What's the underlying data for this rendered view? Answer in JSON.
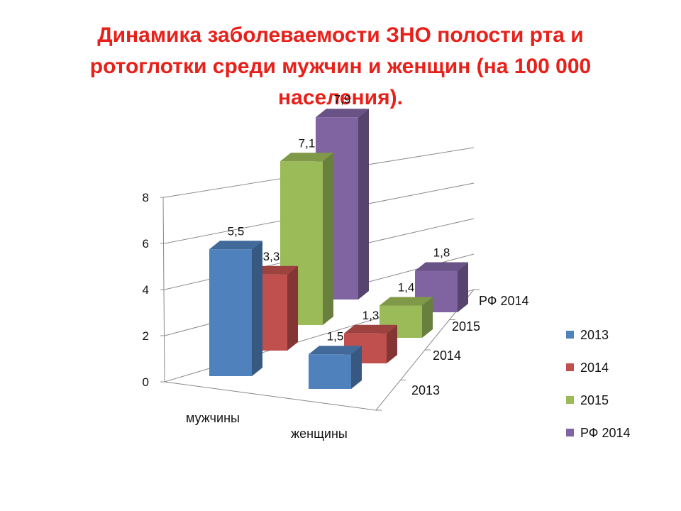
{
  "title_lines": [
    "Динамика заболеваемости ЗНО полости рта и",
    "ротоглотки среди мужчин и женщин (на 100 000",
    "населения)."
  ],
  "chart_data": {
    "type": "bar",
    "subtype": "3d-column",
    "title": "Динамика заболеваемости ЗНО полости рта и ротоглотки среди мужчин и женщин (на 100 000 населения).",
    "categories": [
      "мужчины",
      "женщины"
    ],
    "series": [
      {
        "name": "2013",
        "values": [
          5.5,
          1.5
        ],
        "labels": [
          "5,5",
          "1,5"
        ],
        "color": "#4f81bd"
      },
      {
        "name": "2014",
        "values": [
          3.3,
          1.3
        ],
        "labels": [
          "3,3",
          "1,3"
        ],
        "color": "#c0504d"
      },
      {
        "name": "2015",
        "values": [
          7.1,
          1.4
        ],
        "labels": [
          "7,1",
          "1,4"
        ],
        "color": "#9bbb59"
      },
      {
        "name": "РФ 2014",
        "values": [
          7.9,
          1.8
        ],
        "labels": [
          "7,9",
          "1,8"
        ],
        "color": "#8064a2"
      }
    ],
    "y_ticks": [
      "0",
      "2",
      "4",
      "6",
      "8"
    ],
    "ylim": [
      0,
      8
    ],
    "depth_labels": [
      "2013",
      "2014",
      "2015",
      "РФ 2014"
    ],
    "legend": {
      "position": "right",
      "entries": [
        "2013",
        "2014",
        "2015",
        "РФ 2014"
      ]
    },
    "grid": true
  }
}
